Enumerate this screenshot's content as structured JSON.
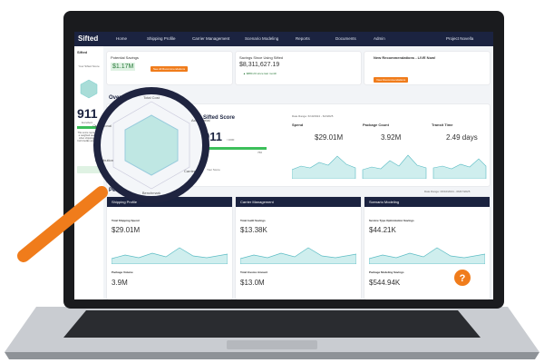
{
  "nav": {
    "logo": "Sifted",
    "items": [
      "Home",
      "Shipping Profile",
      "Carrier Management",
      "Scenario Modeling",
      "Reports",
      "Documents",
      "Admin"
    ],
    "user": "Project Novella"
  },
  "sidebar": {
    "heading": "Sifted",
    "label": "Your Sifted Score",
    "score": "911",
    "rating": "Excellent",
    "note": "This score represents a weighted average when shipping with both FedEx and UPS."
  },
  "top_cards": [
    {
      "title": "Potential Savings",
      "value": "$1.17M",
      "button": "See All Recommendations"
    },
    {
      "title": "Savings Since Using Sifted",
      "value": "$8,311,627.19",
      "delta": "▲ $880.20 since last month"
    },
    {
      "title": "New Recommendations - LIVE Now!",
      "button": "View Recommendations"
    }
  ],
  "scorecard": {
    "title": "Overall Health Scorecard",
    "score_title": "Sifted Score",
    "score": "911",
    "max": "/ 1000",
    "benchmark": "760",
    "legend": "Your Score",
    "date_range": "Date Range: 6/10/2024 - 6/2/2025",
    "radar_labels": [
      "Total Cost",
      "Accessorial",
      "Carrier",
      "Benchmark",
      "Distribution",
      "Operational"
    ],
    "kpis": [
      {
        "label": "Spend",
        "value": "$29.01M"
      },
      {
        "label": "Package Count",
        "value": "3.92M"
      },
      {
        "label": "Transit Time",
        "value": "2.49 days"
      }
    ]
  },
  "performance": {
    "title": "Performance",
    "date_range": "Date Range: 06/10/2024 - 06/07/2025",
    "cards": [
      {
        "title": "Shipping Profile",
        "m1": "Total Shipping Spend",
        "v1": "$29.01M",
        "m2": "Package Volume",
        "v2": "3.9M"
      },
      {
        "title": "Carrier Management",
        "m1": "Total Audit Savings",
        "v1": "$13.38K",
        "m2": "Total Invoice Amount",
        "v2": "$13.0M"
      },
      {
        "title": "Scenario Modeling",
        "m1": "Service Type Optimization Savings",
        "v1": "$44.21K",
        "m2": "Package Modeling Savings",
        "v2": "$544.94K"
      }
    ]
  },
  "help": "?"
}
